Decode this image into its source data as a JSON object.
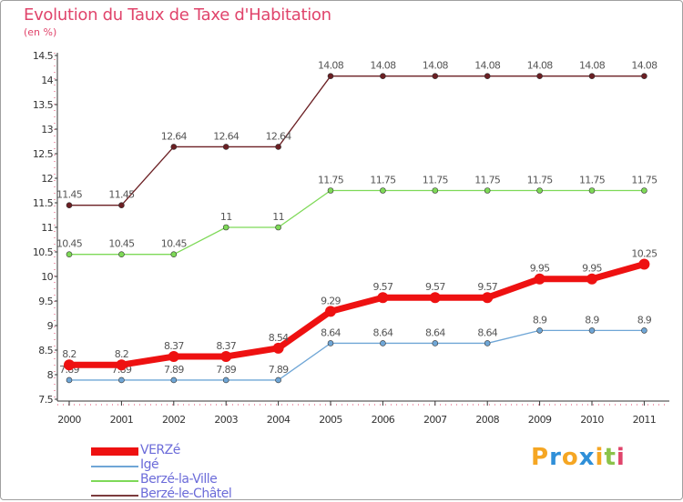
{
  "title": "Evolution du Taux de Taxe d'Habitation",
  "subtitle": "(en %)",
  "logo": {
    "letters": [
      "P",
      "r",
      "o",
      "x",
      "i",
      "t",
      "i"
    ],
    "colors": [
      "#f5a623",
      "#2f8fd8",
      "#f5a623",
      "#2f8fd8",
      "#f5a623",
      "#8bc34a",
      "#e0446b"
    ]
  },
  "chart_data": {
    "type": "line",
    "title": "Evolution du Taux de Taxe d'Habitation",
    "ylabel": "(en %)",
    "xlabel": "",
    "categories": [
      "2000",
      "2001",
      "2002",
      "2003",
      "2004",
      "2005",
      "2006",
      "2007",
      "2008",
      "2009",
      "2010",
      "2011"
    ],
    "ylim": [
      7.5,
      14.5
    ],
    "yticks": [
      "7.5",
      "8",
      "8.5",
      "9",
      "9.5",
      "10",
      "10.5",
      "11",
      "11.5",
      "12",
      "12.5",
      "13",
      "13.5",
      "14",
      "14.5"
    ],
    "grid": false,
    "legend_position": "bottom-left",
    "series": [
      {
        "name": "Berzé-le-Châtel",
        "color": "#6b1f23",
        "legend_color": "#7b3a3c",
        "label_color": "#8a8a8a",
        "values": [
          11.45,
          11.45,
          12.64,
          12.64,
          12.64,
          14.08,
          14.08,
          14.08,
          14.08,
          14.08,
          14.08,
          14.08
        ],
        "labels": [
          "11.45",
          "11.45",
          "12.64",
          "12.64",
          "12.64",
          "14.08",
          "14.08",
          "14.08",
          "14.08",
          "14.08",
          "14.08",
          "14.08"
        ]
      },
      {
        "name": "Berzé-la-Ville",
        "color": "#7ed957",
        "legend_color": "#7ed957",
        "label_color": "#8a8a8a",
        "values": [
          10.45,
          10.45,
          10.45,
          11,
          11,
          11.75,
          11.75,
          11.75,
          11.75,
          11.75,
          11.75,
          11.75
        ],
        "labels": [
          "10.45",
          "10.45",
          "10.45",
          "11",
          "11",
          "11.75",
          "11.75",
          "11.75",
          "11.75",
          "11.75",
          "11.75",
          "11.75"
        ]
      },
      {
        "name": "Igé",
        "color": "#6fa6d6",
        "legend_color": "#6fa6d6",
        "label_color": "#8a8a8a",
        "values": [
          7.89,
          7.89,
          7.89,
          7.89,
          7.89,
          8.64,
          8.64,
          8.64,
          8.64,
          8.9,
          8.9,
          8.9
        ],
        "labels": [
          "7.89",
          "7.89",
          "7.89",
          "7.89",
          "7.89",
          "8.64",
          "8.64",
          "8.64",
          "8.64",
          "8.9",
          "8.9",
          "8.9"
        ]
      },
      {
        "name": "VERZé",
        "color": "#ee1111",
        "legend_color": "#ee1111",
        "label_color": "#8a8a8a",
        "values": [
          8.2,
          8.2,
          8.37,
          8.37,
          8.54,
          9.29,
          9.57,
          9.57,
          9.57,
          9.95,
          9.95,
          10.25
        ],
        "labels": [
          "8.2",
          "8.2",
          "8.37",
          "8.37",
          "8.54",
          "9.29",
          "9.57",
          "9.57",
          "9.57",
          "9.95",
          "9.95",
          "10.25"
        ]
      }
    ],
    "legend": [
      {
        "label": "VERZé",
        "color": "#ee1111",
        "text_color": "#6b6bd9",
        "thick": true
      },
      {
        "label": "Igé",
        "color": "#6fa6d6",
        "text_color": "#6b6bd9",
        "thick": false
      },
      {
        "label": "Berzé-la-Ville",
        "color": "#7ed957",
        "text_color": "#6b6bd9",
        "thick": false
      },
      {
        "label": "Berzé-le-Châtel",
        "color": "#7b3a3c",
        "text_color": "#6b6bd9",
        "thick": false
      }
    ]
  }
}
